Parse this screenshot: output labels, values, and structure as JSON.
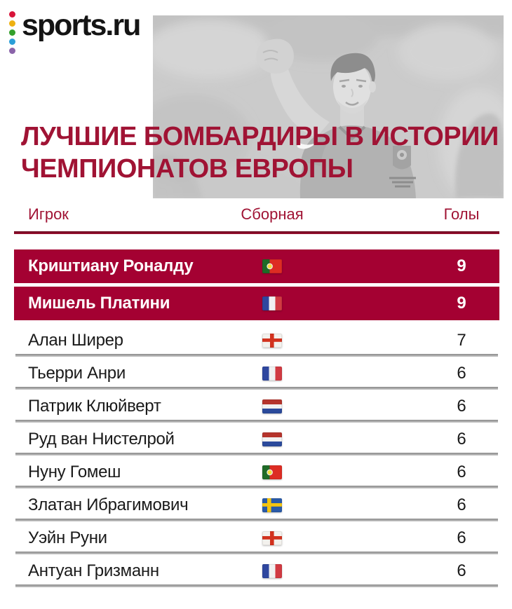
{
  "brand": {
    "logo_text": "sports.ru",
    "dot_colors": [
      "#D8143A",
      "#EEB111",
      "#33A02C",
      "#2B9FD8",
      "#8A63A9"
    ]
  },
  "title": {
    "line1": "ЛУЧШИЕ БОМБАРДИРЫ В ИСТОРИИ",
    "line2": "ЧЕМПИОНАТОВ ЕВРОПЫ"
  },
  "hero": {
    "photo_subject": "cristiano-ronaldo-celebrating-grayscale"
  },
  "colors": {
    "accent": "#A01334",
    "highlight": "#A40132",
    "rule_dark": "#6B0A20",
    "rule": "#9B1030",
    "separator": "#8A8A8A",
    "separator_light": "#C6C6C6",
    "text": "#1A1A1A",
    "logo_text_color": "#141414"
  },
  "table": {
    "headers": {
      "player": "Игрок",
      "team": "Сборная",
      "goals": "Голы"
    },
    "rows": [
      {
        "player": "Криштиану Роналду",
        "country": "portugal",
        "team_name": "Португалия",
        "goals": "9",
        "highlight": true
      },
      {
        "player": "Мишель Платини",
        "country": "france",
        "team_name": "Франция",
        "goals": "9",
        "highlight": true
      },
      {
        "player": "Алан Ширер",
        "country": "england",
        "team_name": "Англия",
        "goals": "7",
        "highlight": false
      },
      {
        "player": "Тьерри Анри",
        "country": "france",
        "team_name": "Франция",
        "goals": "6",
        "highlight": false
      },
      {
        "player": "Патрик Клюйверт",
        "country": "netherlands",
        "team_name": "Нидерланды",
        "goals": "6",
        "highlight": false
      },
      {
        "player": "Руд ван Нистелрой",
        "country": "netherlands",
        "team_name": "Нидерланды",
        "goals": "6",
        "highlight": false
      },
      {
        "player": "Нуну Гомеш",
        "country": "portugal",
        "team_name": "Португалия",
        "goals": "6",
        "highlight": false
      },
      {
        "player": "Златан Ибрагимович",
        "country": "sweden",
        "team_name": "Швеция",
        "goals": "6",
        "highlight": false
      },
      {
        "player": "Уэйн Руни",
        "country": "england",
        "team_name": "Англия",
        "goals": "6",
        "highlight": false
      },
      {
        "player": "Антуан Гризманн",
        "country": "france",
        "team_name": "Франция",
        "goals": "6",
        "highlight": false
      }
    ]
  },
  "chart_data": {
    "type": "table",
    "title": "ЛУЧШИЕ БОМБАРДИРЫ В ИСТОРИИ ЧЕМПИОНАТОВ ЕВРОПЫ",
    "columns": [
      "Игрок",
      "Сборная",
      "Голы"
    ],
    "rows": [
      [
        "Криштиану Роналду",
        "Португалия",
        9
      ],
      [
        "Мишель Платини",
        "Франция",
        9
      ],
      [
        "Алан Ширер",
        "Англия",
        7
      ],
      [
        "Тьерри Анри",
        "Франция",
        6
      ],
      [
        "Патрик Клюйверт",
        "Нидерланды",
        6
      ],
      [
        "Руд ван Нистелрой",
        "Нидерланды",
        6
      ],
      [
        "Нуну Гомеш",
        "Португалия",
        6
      ],
      [
        "Златан Ибрагимович",
        "Швеция",
        6
      ],
      [
        "Уэйн Руни",
        "Англия",
        6
      ],
      [
        "Антуан Гризманн",
        "Франция",
        6
      ]
    ],
    "highlighted_rows": [
      0,
      1
    ]
  }
}
